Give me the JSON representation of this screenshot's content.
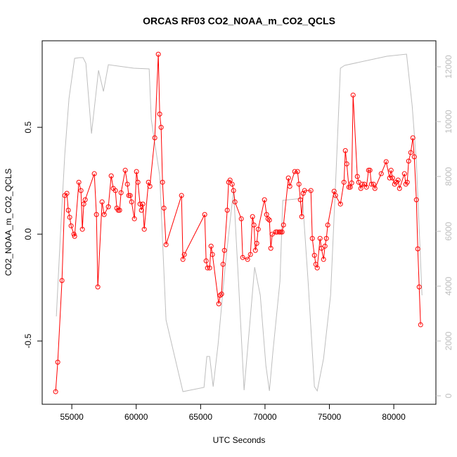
{
  "chart_data": {
    "type": "line",
    "title": "ORCAS RF03 CO2_NOAA_m_CO2_QCLS",
    "x_label": "UTC Seconds",
    "y_label": "CO2_NOAA_m_CO2_QCLS",
    "xlim": [
      52700,
      83270
    ],
    "xticks": [
      55000,
      60000,
      65000,
      70000,
      75000,
      80000
    ],
    "ylim": [
      -0.796,
      0.905
    ],
    "yticks": [
      {
        "value": -0.5,
        "label": "-0.5"
      },
      {
        "value": 0,
        "label": "0.0"
      },
      {
        "value": 0.5,
        "label": "0.5"
      }
    ],
    "y2lim": [
      -308,
      12949
    ],
    "y2ticks": [
      0,
      2000,
      4000,
      6000,
      8000,
      10000,
      12000
    ],
    "y2_color": "#bebebe",
    "series": [
      {
        "color": "#ff0000",
        "markers": true,
        "x": [
          53744,
          53908,
          54236,
          54454,
          54618,
          54727,
          54836,
          54945,
          55164,
          55218,
          55546,
          55710,
          55819,
          55928,
          56037,
          56747,
          56911,
          57020,
          57348,
          57512,
          57839,
          58058,
          58221,
          58385,
          58494,
          58604,
          58713,
          58822,
          59150,
          59313,
          59423,
          59532,
          59641,
          59859,
          60023,
          60132,
          60296,
          60405,
          60515,
          60624,
          60951,
          61061,
          61443,
          61716,
          61825,
          61934,
          62043,
          62153,
          62316,
          63518,
          63627,
          63736,
          65319,
          65429,
          65538,
          65702,
          65811,
          65920,
          66411,
          66521,
          66630,
          66739,
          66848,
          67067,
          67176,
          67285,
          67449,
          67558,
          67667,
          68159,
          68268,
          68650,
          68868,
          69032,
          69141,
          69251,
          69360,
          69469,
          69960,
          70124,
          70233,
          70343,
          70452,
          70561,
          70834,
          70943,
          71107,
          71216,
          71325,
          71435,
          71817,
          71926,
          72308,
          72527,
          72636,
          72745,
          72854,
          72963,
          73073,
          73564,
          73673,
          73837,
          73946,
          74055,
          74274,
          74383,
          74547,
          74656,
          74765,
          74874,
          75366,
          75475,
          75857,
          76130,
          76239,
          76349,
          76512,
          76622,
          76731,
          76840,
          77168,
          77277,
          77441,
          77550,
          77714,
          77877,
          78041,
          78150,
          78260,
          78423,
          78533,
          79024,
          79406,
          79679,
          79788,
          79898,
          80061,
          80171,
          80334,
          80444,
          80826,
          80935,
          81044,
          81153,
          81317,
          81481,
          81590,
          81754,
          81863,
          81972,
          82082
        ],
        "values": [
          -0.737,
          -0.599,
          -0.217,
          0.181,
          0.191,
          0.112,
          0.079,
          0.039,
          0,
          -0.01,
          0.243,
          0.204,
          0.023,
          0.141,
          0.161,
          0.283,
          0.092,
          -0.247,
          0.151,
          0.092,
          0.128,
          0.273,
          0.214,
          0.204,
          0.122,
          0.112,
          0.112,
          0.194,
          0.299,
          0.234,
          0.181,
          0.181,
          0.151,
          0.072,
          0.293,
          0.243,
          0.141,
          0.112,
          0.141,
          0.023,
          0.243,
          0.224,
          0.451,
          0.842,
          0.562,
          0.5,
          0.243,
          0.122,
          -0.049,
          0.181,
          -0.118,
          -0.095,
          0.092,
          -0.125,
          -0.158,
          -0.158,
          -0.056,
          -0.095,
          -0.326,
          -0.286,
          -0.28,
          -0.141,
          -0.076,
          0.112,
          0.243,
          0.253,
          0.234,
          0.204,
          0.151,
          0.072,
          -0.109,
          -0.118,
          -0.095,
          0.082,
          0.043,
          -0.076,
          -0.043,
          0.023,
          0.161,
          0.092,
          0.072,
          0.066,
          -0.066,
          0,
          0.01,
          0.01,
          0.01,
          0.01,
          0.01,
          0.043,
          0.263,
          0.224,
          0.293,
          0.293,
          0.234,
          0.161,
          0.082,
          0.191,
          0.204,
          0.204,
          -0.02,
          -0.099,
          -0.141,
          -0.158,
          -0.02,
          -0.066,
          -0.118,
          -0.056,
          -0.02,
          0.043,
          0.201,
          0.181,
          0.141,
          0.243,
          0.391,
          0.329,
          0.22,
          0.22,
          0.24,
          0.651,
          0.27,
          0.243,
          0.214,
          0.234,
          0.234,
          0.22,
          0.299,
          0.299,
          0.234,
          0.234,
          0.214,
          0.283,
          0.339,
          0.263,
          0.299,
          0.263,
          0.234,
          0.243,
          0.253,
          0.214,
          0.283,
          0.234,
          0.243,
          0.342,
          0.382,
          0.451,
          0.362,
          0.161,
          -0.069,
          -0.247,
          -0.424
        ]
      },
      {
        "color": "#bebebe",
        "markers": false,
        "axis": "y2",
        "x": [
          53799,
          54126,
          54454,
          54782,
          55218,
          55601,
          55874,
          56092,
          56529,
          57075,
          57457,
          57839,
          59805,
          61006,
          61170,
          61825,
          62316,
          63627,
          65265,
          65483,
          65702,
          65975,
          66357,
          66903,
          67558,
          67940,
          68377,
          68868,
          69196,
          69633,
          70070,
          70343,
          70616,
          71162,
          71380,
          72909,
          73346,
          73837,
          74055,
          74547,
          75093,
          75530,
          75857,
          76185,
          79461,
          80990,
          81426,
          81754,
          82191
        ],
        "values": [
          2897,
          5974,
          8795,
          10846,
          12308,
          12333,
          12333,
          12128,
          9564,
          11872,
          11103,
          12077,
          11949,
          11923,
          10077,
          8026,
          2769,
          154,
          308,
          1436,
          1436,
          333,
          1872,
          4692,
          7513,
          4179,
          205,
          2897,
          4692,
          3667,
          1103,
          179,
          1615,
          4179,
          7128,
          7205,
          4179,
          333,
          179,
          1359,
          3667,
          8282,
          11949,
          12051,
          12385,
          12462,
          10590,
          8538,
          3667
        ]
      }
    ]
  }
}
